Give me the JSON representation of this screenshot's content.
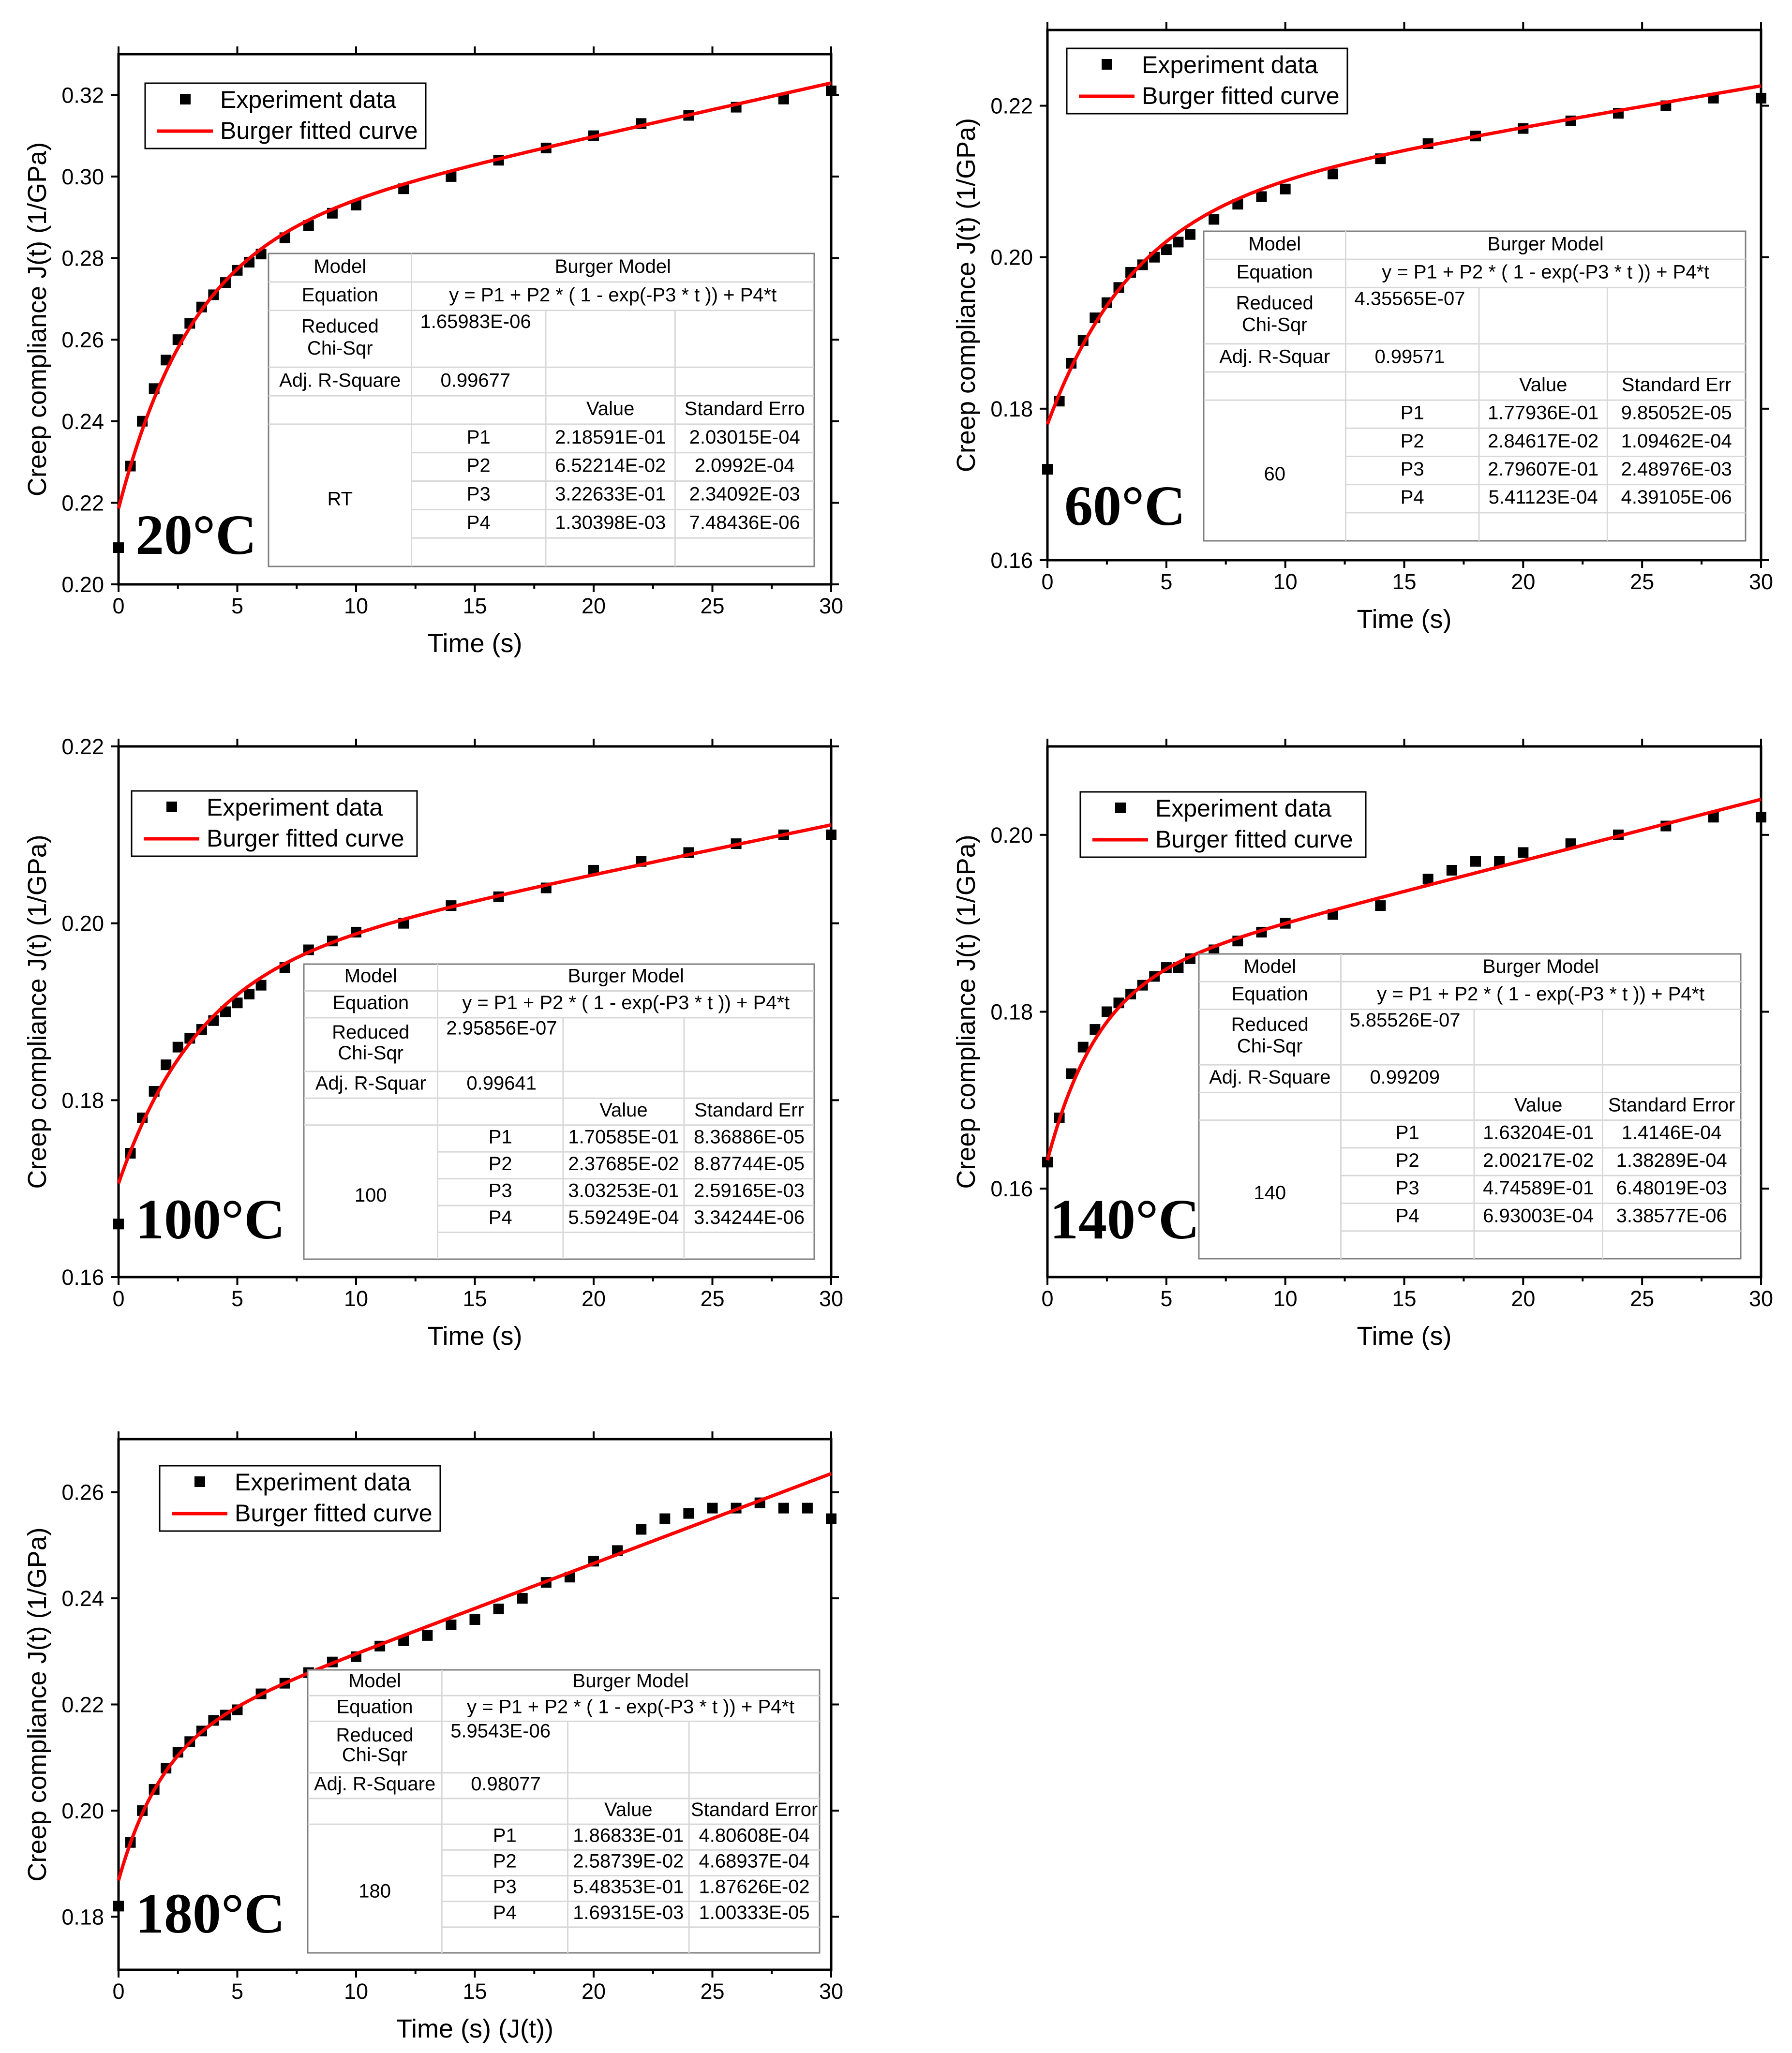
{
  "chart_data": [
    {
      "type": "scatter",
      "temperature_label": "20°C",
      "xlabel": "Time (s)",
      "ylabel": "Creep compliance J(t) (1/GPa)",
      "xlim": [
        0,
        30
      ],
      "ylim": [
        0.2,
        0.33
      ],
      "xticks": [
        "0",
        "5",
        "10",
        "15",
        "20",
        "25",
        "30"
      ],
      "yticks": [
        "0.20",
        "0.22",
        "0.24",
        "0.26",
        "0.28",
        "0.30",
        "0.32"
      ],
      "ytick_values": [
        0.2,
        0.22,
        0.24,
        0.26,
        0.28,
        0.3,
        0.32
      ],
      "legend": [
        "Experiment data",
        "Burger fitted curve"
      ],
      "series": [
        {
          "name": "Experiment data",
          "x": [
            0,
            0.5,
            1,
            1.5,
            2,
            2.5,
            3,
            3.5,
            4,
            4.5,
            5,
            5.5,
            6,
            7,
            8,
            9,
            10,
            12,
            14,
            16,
            18,
            20,
            22,
            24,
            26,
            28,
            30
          ],
          "y": [
            0.209,
            0.229,
            0.24,
            0.248,
            0.255,
            0.26,
            0.264,
            0.268,
            0.271,
            0.274,
            0.277,
            0.279,
            0.281,
            0.285,
            0.288,
            0.291,
            0.293,
            0.297,
            0.3,
            0.304,
            0.307,
            0.31,
            0.313,
            0.315,
            0.317,
            0.319,
            0.321
          ]
        },
        {
          "name": "Burger fitted curve",
          "P1": 0.218591,
          "P2": 0.0652214,
          "P3": 0.322633,
          "P4": 0.00130398
        }
      ],
      "fit_table": {
        "model_header": "Model",
        "model_value": "Burger Model",
        "equation_header": "Equation",
        "equation": "y = P1 + P2 * ( 1 - exp(-P3 * t )) + P4*t",
        "chisq_header_1": "Reduced",
        "chisq_header_2": "Chi-Sqr",
        "chisq_value": "1.65983E-06",
        "rsq_header": "Adj. R-Square",
        "rsq_value": "0.99677",
        "value_header": "Value",
        "stderr_header": "Standard Erro",
        "group": "RT",
        "params": [
          {
            "name": "P1",
            "value": "2.18591E-01",
            "err": "2.03015E-04"
          },
          {
            "name": "P2",
            "value": "6.52214E-02",
            "err": "2.0992E-04"
          },
          {
            "name": "P3",
            "value": "3.22633E-01",
            "err": "2.34092E-03"
          },
          {
            "name": "P4",
            "value": "1.30398E-03",
            "err": "7.48436E-06"
          }
        ]
      }
    },
    {
      "type": "scatter",
      "temperature_label": "60°C",
      "xlabel": "Time (s)",
      "ylabel": "Creep compliance J(t) (1/GPa)",
      "xlim": [
        0,
        30
      ],
      "ylim": [
        0.16,
        0.23
      ],
      "xticks": [
        "0",
        "5",
        "10",
        "15",
        "20",
        "25",
        "30"
      ],
      "yticks": [
        "0.16",
        "0.18",
        "0.20",
        "0.22"
      ],
      "ytick_values": [
        0.16,
        0.18,
        0.2,
        0.22
      ],
      "legend": [
        "Experiment data",
        "Burger fitted curve"
      ],
      "series": [
        {
          "name": "Experiment data",
          "x": [
            0,
            0.5,
            1,
            1.5,
            2,
            2.5,
            3,
            3.5,
            4,
            4.5,
            5,
            5.5,
            6,
            7,
            8,
            9,
            10,
            12,
            14,
            16,
            18,
            20,
            22,
            24,
            26,
            28,
            30
          ],
          "y": [
            0.172,
            0.181,
            0.186,
            0.189,
            0.192,
            0.194,
            0.196,
            0.198,
            0.199,
            0.2,
            0.201,
            0.202,
            0.203,
            0.205,
            0.207,
            0.208,
            0.209,
            0.211,
            0.213,
            0.215,
            0.216,
            0.217,
            0.218,
            0.219,
            0.22,
            0.221,
            0.221
          ]
        },
        {
          "name": "Burger fitted curve",
          "P1": 0.177936,
          "P2": 0.0284617,
          "P3": 0.279607,
          "P4": 0.000541123
        }
      ],
      "fit_table": {
        "model_header": "Model",
        "model_value": "Burger Model",
        "equation_header": "Equation",
        "equation": "y = P1 + P2 * ( 1 - exp(-P3 * t )) + P4*t",
        "chisq_header_1": "Reduced",
        "chisq_header_2": "Chi-Sqr",
        "chisq_value": "4.35565E-07",
        "rsq_header": "Adj. R-Squar",
        "rsq_value": "0.99571",
        "value_header": "Value",
        "stderr_header": "Standard Err",
        "group": "60",
        "params": [
          {
            "name": "P1",
            "value": "1.77936E-01",
            "err": "9.85052E-05"
          },
          {
            "name": "P2",
            "value": "2.84617E-02",
            "err": "1.09462E-04"
          },
          {
            "name": "P3",
            "value": "2.79607E-01",
            "err": "2.48976E-03"
          },
          {
            "name": "P4",
            "value": "5.41123E-04",
            "err": "4.39105E-06"
          }
        ]
      }
    },
    {
      "type": "scatter",
      "temperature_label": "100°C",
      "xlabel": "Time (s)",
      "ylabel": "Creep compliance J(t) (1/GPa)",
      "xlim": [
        0,
        30
      ],
      "ylim": [
        0.16,
        0.22
      ],
      "xticks": [
        "0",
        "5",
        "10",
        "15",
        "20",
        "25",
        "30"
      ],
      "yticks": [
        "0.16",
        "0.18",
        "0.20",
        "0.22"
      ],
      "ytick_values": [
        0.16,
        0.18,
        0.2,
        0.22
      ],
      "legend": [
        "Experiment data",
        "Burger fitted curve"
      ],
      "series": [
        {
          "name": "Experiment data",
          "x": [
            0,
            0.5,
            1,
            1.5,
            2,
            2.5,
            3,
            3.5,
            4,
            4.5,
            5,
            5.5,
            6,
            7,
            8,
            9,
            10,
            12,
            14,
            16,
            18,
            20,
            22,
            24,
            26,
            28,
            30
          ],
          "y": [
            0.166,
            0.174,
            0.178,
            0.181,
            0.184,
            0.186,
            0.187,
            0.188,
            0.189,
            0.19,
            0.191,
            0.192,
            0.193,
            0.195,
            0.197,
            0.198,
            0.199,
            0.2,
            0.202,
            0.203,
            0.204,
            0.206,
            0.207,
            0.208,
            0.209,
            0.21,
            0.21
          ]
        },
        {
          "name": "Burger fitted curve",
          "P1": 0.170585,
          "P2": 0.0237685,
          "P3": 0.303253,
          "P4": 0.000559249
        }
      ],
      "fit_table": {
        "model_header": "Model",
        "model_value": "Burger Model",
        "equation_header": "Equation",
        "equation": "y = P1 + P2 * ( 1 - exp(-P3 * t )) + P4*t",
        "chisq_header_1": "Reduced",
        "chisq_header_2": "Chi-Sqr",
        "chisq_value": "2.95856E-07",
        "rsq_header": "Adj. R-Squar",
        "rsq_value": "0.99641",
        "value_header": "Value",
        "stderr_header": "Standard Err",
        "group": "100",
        "params": [
          {
            "name": "P1",
            "value": "1.70585E-01",
            "err": "8.36886E-05"
          },
          {
            "name": "P2",
            "value": "2.37685E-02",
            "err": "8.87744E-05"
          },
          {
            "name": "P3",
            "value": "3.03253E-01",
            "err": "2.59165E-03"
          },
          {
            "name": "P4",
            "value": "5.59249E-04",
            "err": "3.34244E-06"
          }
        ]
      }
    },
    {
      "type": "scatter",
      "temperature_label": "140°C",
      "xlabel": "Time (s)",
      "ylabel": "Creep compliance J(t) (1/GPa)",
      "xlim": [
        0,
        30
      ],
      "ylim": [
        0.15,
        0.21
      ],
      "xticks": [
        "0",
        "5",
        "10",
        "15",
        "20",
        "25",
        "30"
      ],
      "yticks": [
        "0.16",
        "0.18",
        "0.20"
      ],
      "ytick_values": [
        0.16,
        0.18,
        0.2
      ],
      "legend": [
        "Experiment data",
        "Burger fitted curve"
      ],
      "series": [
        {
          "name": "Experiment data",
          "x": [
            0,
            0.5,
            1,
            1.5,
            2,
            2.5,
            3,
            3.5,
            4,
            4.5,
            5,
            5.5,
            6,
            7,
            8,
            9,
            10,
            12,
            14,
            16,
            17,
            18,
            19,
            20,
            22,
            24,
            26,
            28,
            30
          ],
          "y": [
            0.163,
            0.168,
            0.173,
            0.176,
            0.178,
            0.18,
            0.181,
            0.182,
            0.183,
            0.184,
            0.185,
            0.185,
            0.186,
            0.187,
            0.188,
            0.189,
            0.19,
            0.191,
            0.192,
            0.195,
            0.196,
            0.197,
            0.197,
            0.198,
            0.199,
            0.2,
            0.201,
            0.202,
            0.202
          ]
        },
        {
          "name": "Burger fitted curve",
          "P1": 0.163204,
          "P2": 0.0200217,
          "P3": 0.474589,
          "P4": 0.000693003
        }
      ],
      "fit_table": {
        "model_header": "Model",
        "model_value": "Burger Model",
        "equation_header": "Equation",
        "equation": "y = P1 + P2 * ( 1 - exp(-P3 * t )) + P4*t",
        "chisq_header_1": "Reduced",
        "chisq_header_2": "Chi-Sqr",
        "chisq_value": "5.85526E-07",
        "rsq_header": "Adj. R-Square",
        "rsq_value": "0.99209",
        "value_header": "Value",
        "stderr_header": "Standard Error",
        "group": "140",
        "params": [
          {
            "name": "P1",
            "value": "1.63204E-01",
            "err": "1.4146E-04"
          },
          {
            "name": "P2",
            "value": "2.00217E-02",
            "err": "1.38289E-04"
          },
          {
            "name": "P3",
            "value": "4.74589E-01",
            "err": "6.48019E-03"
          },
          {
            "name": "P4",
            "value": "6.93003E-04",
            "err": "3.38577E-06"
          }
        ]
      }
    },
    {
      "type": "scatter",
      "temperature_label": "180°C",
      "xlabel": "Time (s) (J(t))",
      "ylabel": "Creep compliance J(t) (1/GPa)",
      "xlim": [
        0,
        30
      ],
      "ylim": [
        0.17,
        0.27
      ],
      "xticks": [
        "0",
        "5",
        "10",
        "15",
        "20",
        "25",
        "30"
      ],
      "yticks": [
        "0.18",
        "0.20",
        "0.22",
        "0.24",
        "0.26"
      ],
      "ytick_values": [
        0.18,
        0.2,
        0.22,
        0.24,
        0.26
      ],
      "legend": [
        "Experiment data",
        "Burger fitted curve"
      ],
      "series": [
        {
          "name": "Experiment data",
          "x": [
            0,
            0.5,
            1,
            1.5,
            2,
            2.5,
            3,
            3.5,
            4,
            4.5,
            5,
            6,
            7,
            8,
            9,
            10,
            11,
            12,
            13,
            14,
            15,
            16,
            17,
            18,
            19,
            20,
            21,
            22,
            23,
            24,
            25,
            26,
            27,
            28,
            29,
            30
          ],
          "y": [
            0.182,
            0.194,
            0.2,
            0.204,
            0.208,
            0.211,
            0.213,
            0.215,
            0.217,
            0.218,
            0.219,
            0.222,
            0.224,
            0.226,
            0.228,
            0.229,
            0.231,
            0.232,
            0.233,
            0.235,
            0.236,
            0.238,
            0.24,
            0.243,
            0.244,
            0.247,
            0.249,
            0.253,
            0.255,
            0.256,
            0.257,
            0.257,
            0.258,
            0.257,
            0.257,
            0.255
          ]
        },
        {
          "name": "Burger fitted curve",
          "P1": 0.186833,
          "P2": 0.0258739,
          "P3": 0.548353,
          "P4": 0.00169315
        }
      ],
      "fit_table": {
        "model_header": "Model",
        "model_value": "Burger Model",
        "equation_header": "Equation",
        "equation": "y = P1 + P2 * ( 1 - exp(-P3 * t )) + P4*t",
        "chisq_header_1": "Reduced",
        "chisq_header_2": "Chi-Sqr",
        "chisq_value": "5.9543E-06",
        "rsq_header": "Adj. R-Square",
        "rsq_value": "0.98077",
        "value_header": "Value",
        "stderr_header": "Standard Error",
        "group": "180",
        "params": [
          {
            "name": "P1",
            "value": "1.86833E-01",
            "err": "4.80608E-04"
          },
          {
            "name": "P2",
            "value": "2.58739E-02",
            "err": "4.68937E-04"
          },
          {
            "name": "P3",
            "value": "5.48353E-01",
            "err": "1.87626E-02"
          },
          {
            "name": "P4",
            "value": "1.69315E-03",
            "err": "1.00333E-05"
          }
        ]
      }
    }
  ],
  "colors": {
    "fit": "#ff0000",
    "marker": "#000000",
    "axis": "#000000",
    "table_border": "#808080"
  }
}
